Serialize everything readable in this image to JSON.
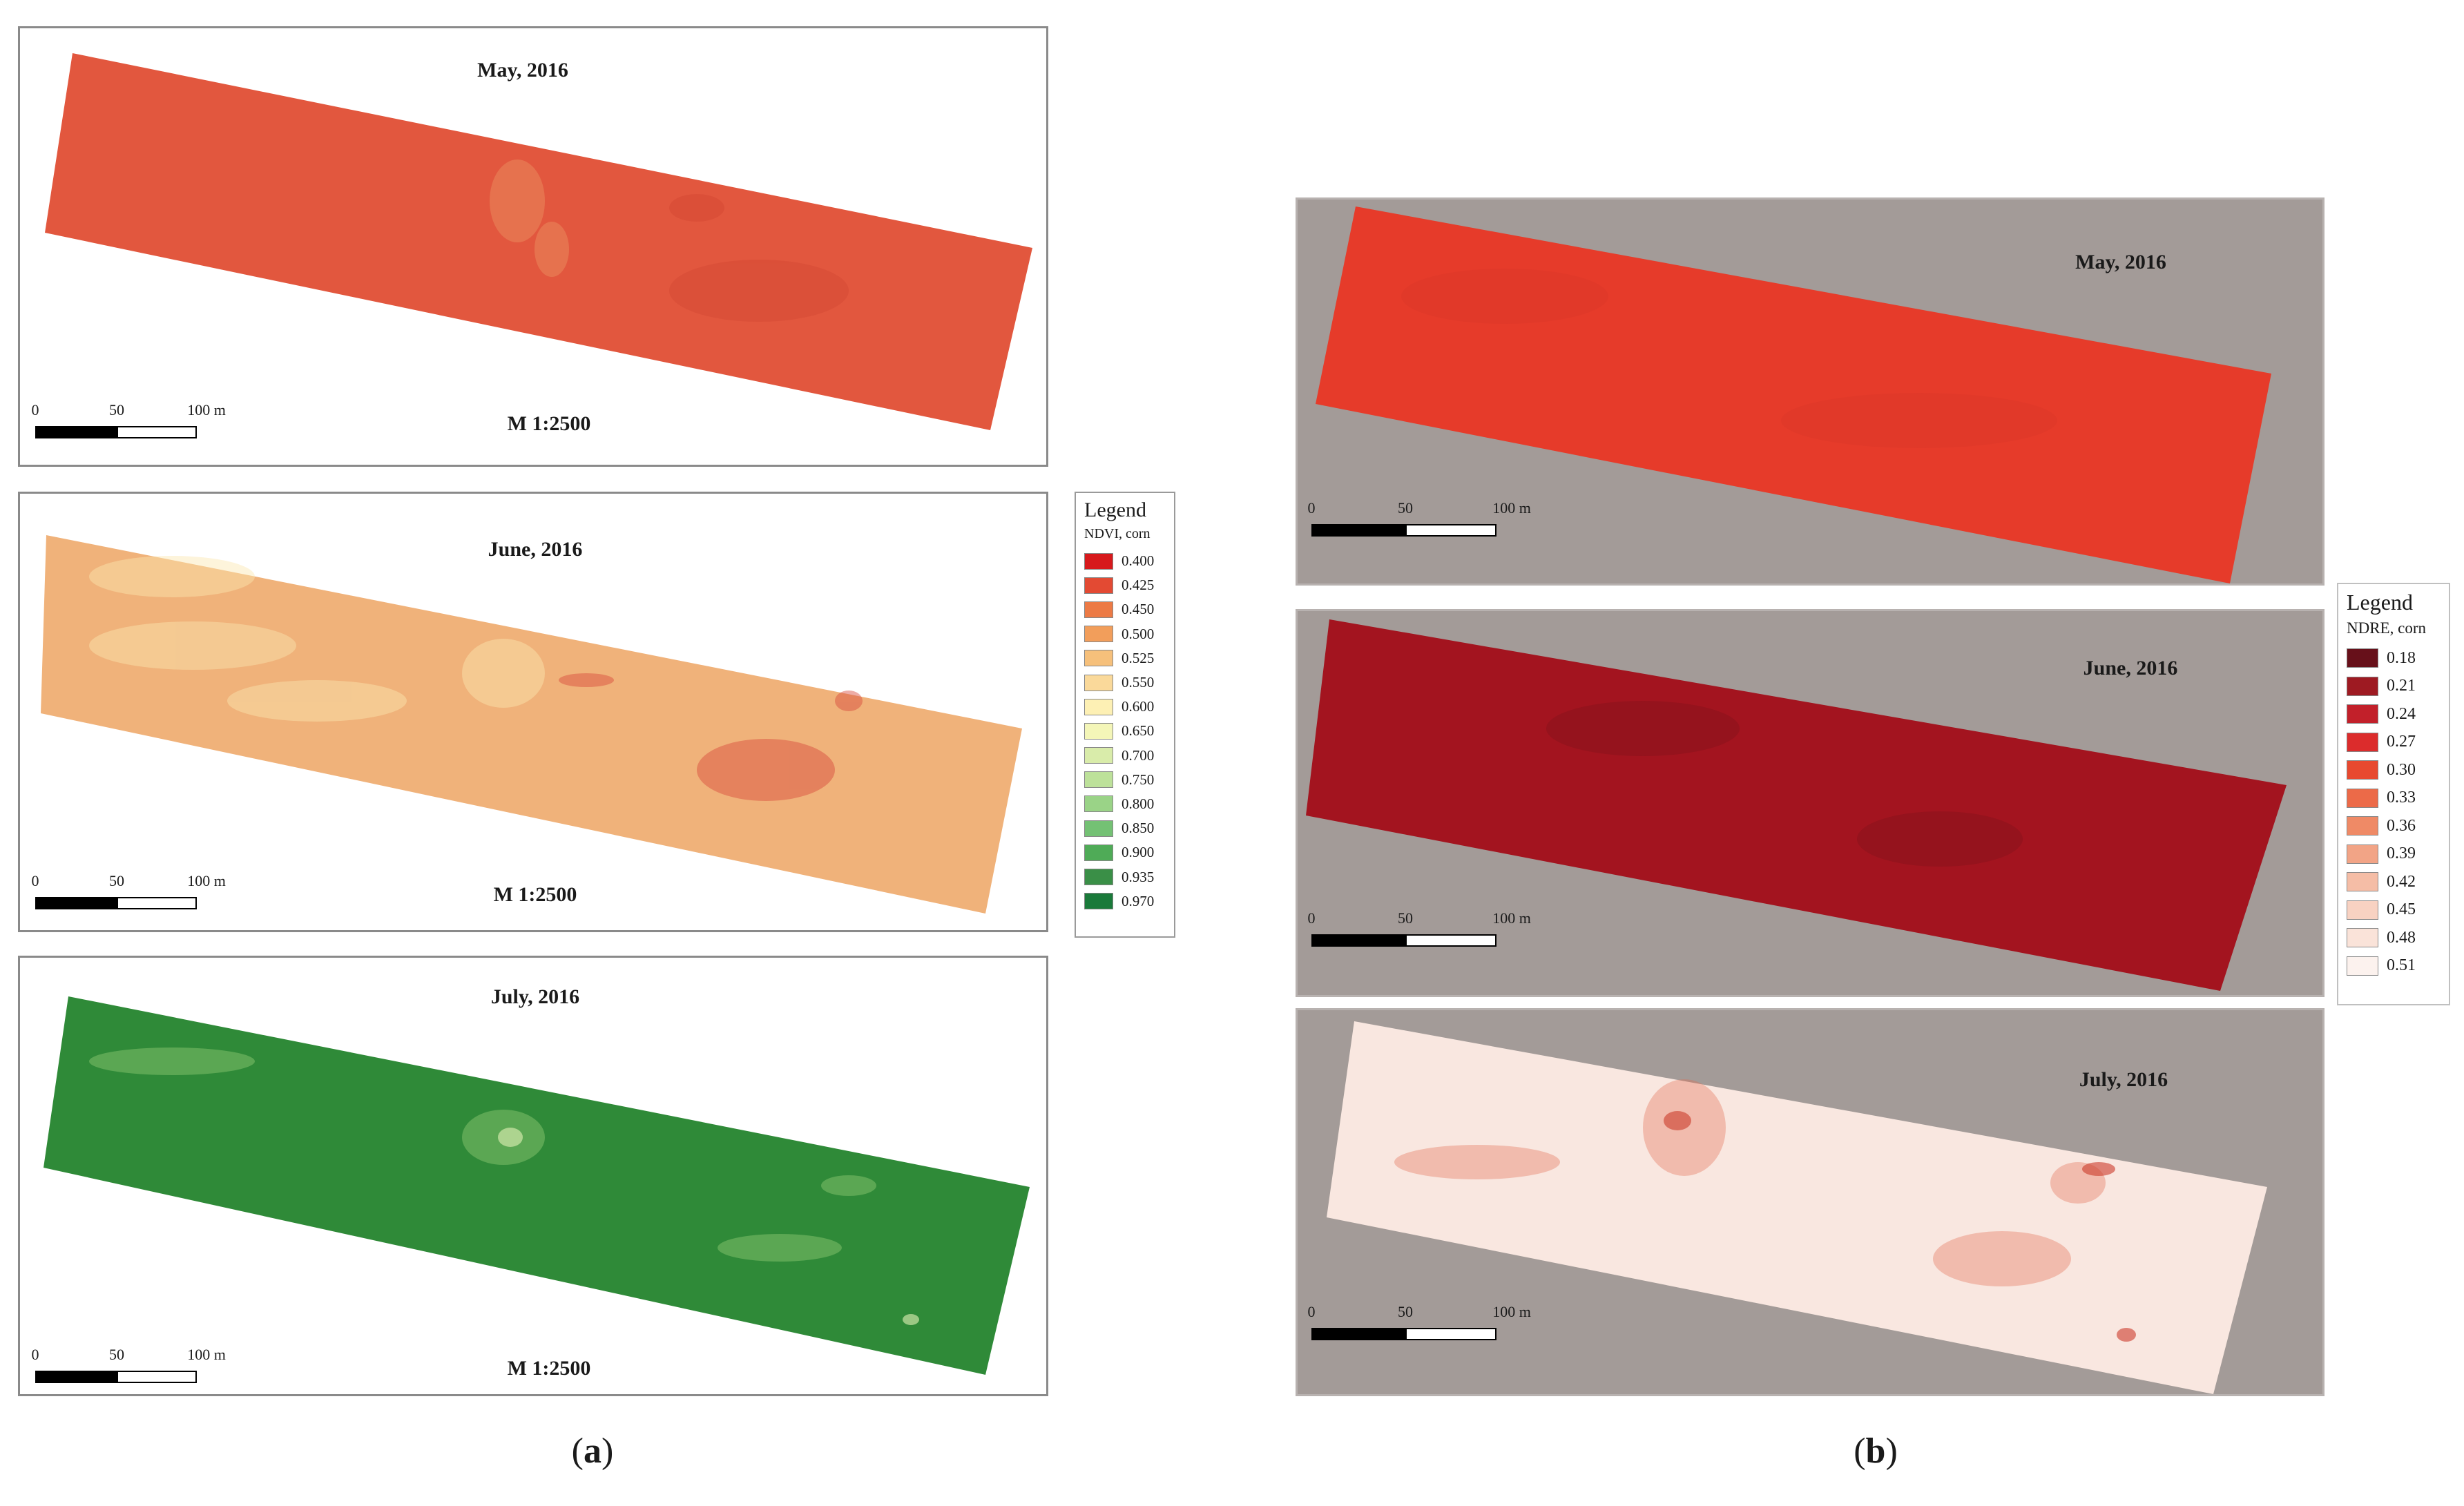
{
  "panel_a": {
    "label": "a",
    "maps": [
      {
        "title": "May, 2016",
        "scale_text": "M 1:2500",
        "fill": "#e2573e"
      },
      {
        "title": "June, 2016",
        "scale_text": "M 1:2500",
        "fill": "#f0b27a"
      },
      {
        "title": "July, 2016",
        "scale_text": "M 1:2500",
        "fill": "#2f8a38"
      }
    ],
    "scalebar": {
      "ticks": [
        "0",
        "50",
        "100 m"
      ]
    },
    "legend": {
      "title": "Legend",
      "subtitle": "NDVI, corn",
      "items": [
        {
          "value": "0.400",
          "color": "#d7191c"
        },
        {
          "value": "0.425",
          "color": "#e34a33"
        },
        {
          "value": "0.450",
          "color": "#ec7a45"
        },
        {
          "value": "0.500",
          "color": "#f29e5b"
        },
        {
          "value": "0.525",
          "color": "#f6c07b"
        },
        {
          "value": "0.550",
          "color": "#fad99a"
        },
        {
          "value": "0.600",
          "color": "#fdf0b4"
        },
        {
          "value": "0.650",
          "color": "#f4f6b8"
        },
        {
          "value": "0.700",
          "color": "#d9ecaa"
        },
        {
          "value": "0.750",
          "color": "#bde19a"
        },
        {
          "value": "0.800",
          "color": "#9ad387"
        },
        {
          "value": "0.850",
          "color": "#74c174"
        },
        {
          "value": "0.900",
          "color": "#4fab57"
        },
        {
          "value": "0.935",
          "color": "#3a8f47"
        },
        {
          "value": "0.970",
          "color": "#1a7a3a"
        }
      ]
    }
  },
  "panel_b": {
    "label": "b",
    "maps": [
      {
        "title": "May, 2016",
        "fill": "#e63b2a"
      },
      {
        "title": "June, 2016",
        "fill": "#a3141f"
      },
      {
        "title": "July, 2016",
        "fill": "#f9e7e0"
      }
    ],
    "scalebar": {
      "ticks": [
        "0",
        "50",
        "100 m"
      ]
    },
    "legend": {
      "title": "Legend",
      "subtitle": "NDRE, corn",
      "items": [
        {
          "value": "0.18",
          "color": "#67101a"
        },
        {
          "value": "0.21",
          "color": "#9e1a22"
        },
        {
          "value": "0.24",
          "color": "#c2202a"
        },
        {
          "value": "0.27",
          "color": "#dc2c2c"
        },
        {
          "value": "0.30",
          "color": "#e8492f"
        },
        {
          "value": "0.33",
          "color": "#ec6a48"
        },
        {
          "value": "0.36",
          "color": "#ef8a66"
        },
        {
          "value": "0.39",
          "color": "#f2a486"
        },
        {
          "value": "0.42",
          "color": "#f5bda6"
        },
        {
          "value": "0.45",
          "color": "#f8d2c2"
        },
        {
          "value": "0.48",
          "color": "#fae3d9"
        },
        {
          "value": "0.51",
          "color": "#fcf2ee"
        }
      ]
    }
  }
}
